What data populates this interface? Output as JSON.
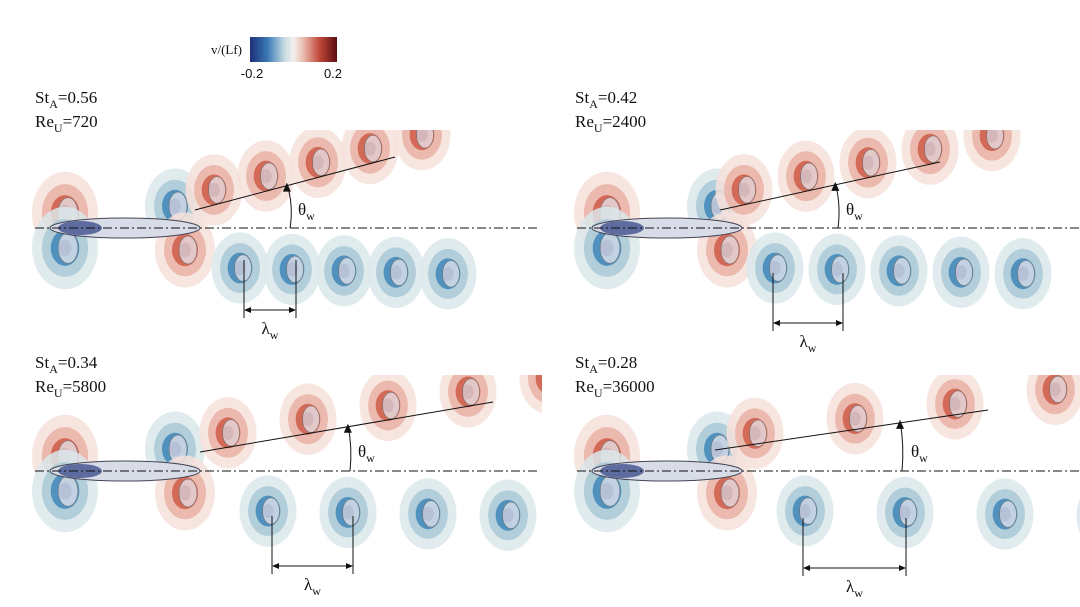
{
  "colorbar": {
    "label": "v/(Lf)",
    "min": -0.2,
    "max": 0.2
  },
  "panels": [
    {
      "st": {
        "base": "St",
        "sub": "A",
        "value": "=0.56"
      },
      "re": {
        "base": "Re",
        "sub": "U",
        "value": "=720"
      },
      "theta": {
        "base": "θ",
        "sub": "w"
      },
      "lambda": {
        "base": "λ",
        "sub": "w"
      }
    },
    {
      "st": {
        "base": "St",
        "sub": "A",
        "value": "=0.42"
      },
      "re": {
        "base": "Re",
        "sub": "U",
        "value": "=2400"
      },
      "theta": {
        "base": "θ",
        "sub": "w"
      },
      "lambda": {
        "base": "λ",
        "sub": "w"
      }
    },
    {
      "st": {
        "base": "St",
        "sub": "A",
        "value": "=0.34"
      },
      "re": {
        "base": "Re",
        "sub": "U",
        "value": "=5800"
      },
      "theta": {
        "base": "θ",
        "sub": "w"
      },
      "lambda": {
        "base": "λ",
        "sub": "w"
      }
    },
    {
      "st": {
        "base": "St",
        "sub": "A",
        "value": "=0.28"
      },
      "re": {
        "base": "Re",
        "sub": "U",
        "value": "=36000"
      },
      "theta": {
        "base": "θ",
        "sub": "w"
      },
      "lambda": {
        "base": "λ",
        "sub": "w"
      }
    }
  ]
}
